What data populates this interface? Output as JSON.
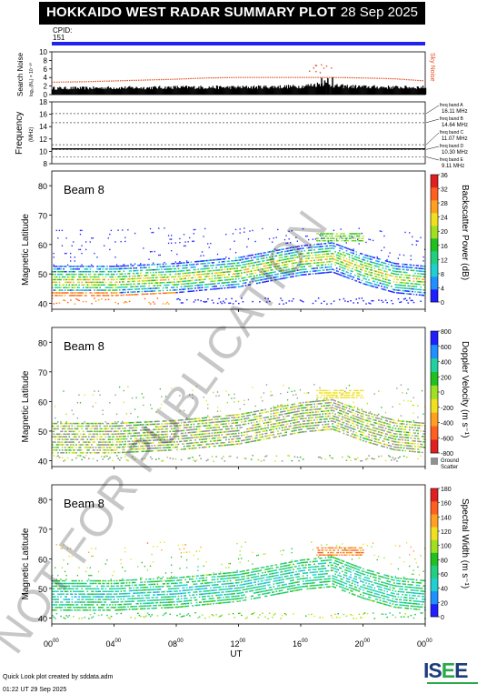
{
  "header": {
    "title": "HOKKAIDO WEST RADAR SUMMARY PLOT",
    "date": "28 Sep 2025",
    "cpid_label": "CPID:",
    "cpid_value": "151",
    "cpid_color": "#2222ee"
  },
  "noise_panel": {
    "ylabel": "Search Noise",
    "ylabel_sub": "log₁₀(N₀) × 10⁻³⁰",
    "right_label": "Sky Noise",
    "yticks": [
      "0",
      "2",
      "4",
      "6",
      "8",
      "10"
    ],
    "ylim": [
      0,
      10
    ],
    "bar_color": "#000000",
    "sky_color": "#e05020"
  },
  "freq_panel": {
    "ylabel": "Frequency",
    "ylabel_unit": "(MHz)",
    "yticks": [
      "8",
      "10",
      "12",
      "14",
      "16",
      "18"
    ],
    "ylim": [
      8,
      18
    ],
    "bands": [
      {
        "name": "freq band A",
        "value": "16.11 MHz"
      },
      {
        "name": "freq band B",
        "value": "14.64 MHz"
      },
      {
        "name": "freq band C",
        "value": "11.07 MHz"
      },
      {
        "name": "freq band D",
        "value": "10.30 MHz"
      },
      {
        "name": "freq band E",
        "value": "9.11 MHz"
      }
    ]
  },
  "panels": [
    {
      "beam": "Beam  8",
      "ylabel": "Magnetic Latitude",
      "yticks": [
        "40",
        "50",
        "60",
        "70",
        "80"
      ],
      "cbar_label": "Backscatter Power (dB)",
      "cbar_ticks": [
        "0",
        "4",
        "8",
        "12",
        "16",
        "20",
        "24",
        "28",
        "32",
        "36"
      ],
      "cbar_colors": [
        "#2020ff",
        "#2090ff",
        "#20d0d0",
        "#20d080",
        "#20c020",
        "#a0e020",
        "#f0e020",
        "#ffa020",
        "#ff6020",
        "#e02020"
      ]
    },
    {
      "beam": "Beam  8",
      "ylabel": "Magnetic Latitude",
      "yticks": [
        "40",
        "50",
        "60",
        "70",
        "80"
      ],
      "cbar_label": "Doppler Velocity (m s⁻¹)",
      "cbar_ticks": [
        "-800",
        "-600",
        "-400",
        "-200",
        "0",
        "200",
        "400",
        "600",
        "800"
      ],
      "cbar_colors": [
        "#e02020",
        "#ff6020",
        "#ffa020",
        "#f0e020",
        "#a0e020",
        "#20c020",
        "#20d0a0",
        "#2090ff",
        "#2020ff"
      ],
      "ground_label": "Ground",
      "ground_label2": "Scatter",
      "ground_color": "#909090"
    },
    {
      "beam": "Beam  8",
      "ylabel": "Magnetic Latitude",
      "yticks": [
        "40",
        "50",
        "60",
        "70",
        "80"
      ],
      "cbar_label": "Spectral Width (m s⁻¹)",
      "cbar_ticks": [
        "0",
        "20",
        "40",
        "60",
        "80",
        "100",
        "120",
        "140",
        "160",
        "180"
      ],
      "cbar_colors": [
        "#2020ff",
        "#2090ff",
        "#20d0d0",
        "#20d080",
        "#20c020",
        "#a0e020",
        "#f0e020",
        "#ffa020",
        "#ff6020",
        "#e02020"
      ]
    }
  ],
  "xaxis": {
    "label": "UT",
    "ticks": [
      {
        "h": "00",
        "m": "00"
      },
      {
        "h": "04",
        "m": "00"
      },
      {
        "h": "08",
        "m": "00"
      },
      {
        "h": "12",
        "m": "00"
      },
      {
        "h": "16",
        "m": "00"
      },
      {
        "h": "20",
        "m": "00"
      },
      {
        "h": "00",
        "m": "00"
      }
    ],
    "xlim_hours": [
      0,
      24
    ]
  },
  "watermark": "NOT FOR PUBLICATION",
  "footer": {
    "line1": "Quick Look plot created by sddata.adm",
    "line2": "01:22 UT 29 Sep 2025",
    "logo_a": "IS",
    "logo_b": "E",
    "logo_c": "E"
  },
  "chart_data": [
    {
      "type": "bar",
      "ylabel": "Search Noise",
      "ylim": [
        0,
        10
      ],
      "x_hours": [
        0,
        2,
        4,
        6,
        8,
        10,
        12,
        14,
        16,
        17.5,
        18,
        20,
        22,
        24
      ],
      "values": [
        1.5,
        1.5,
        1.6,
        1.6,
        1.7,
        1.7,
        1.7,
        1.8,
        1.9,
        2.6,
        2.0,
        1.8,
        1.7,
        1.7
      ],
      "sky_noise": [
        2.9,
        3.0,
        3.2,
        3.4,
        3.6,
        3.9,
        4.0,
        4.0,
        4.0,
        4.0,
        4.0,
        3.9,
        3.7,
        3.2
      ]
    },
    {
      "type": "line",
      "ylabel": "Frequency",
      "ylim": [
        8,
        18
      ],
      "series": [
        {
          "name": "freq",
          "values": [
            16.11,
            14.64,
            11.07,
            10.3,
            9.11
          ]
        }
      ]
    },
    {
      "type": "heatmap",
      "ylabel": "Magnetic Latitude",
      "ylim": [
        38,
        85
      ],
      "xlim_hours": [
        0,
        24
      ],
      "series": [
        {
          "name": "main band center",
          "x_hours": [
            0,
            4,
            8,
            12,
            16,
            18,
            20,
            22,
            24
          ],
          "values": [
            47,
            47,
            48,
            50,
            54,
            55,
            51,
            48,
            47
          ]
        },
        {
          "name": "upper scatter",
          "x_hours": [
            17,
            20
          ],
          "values": [
            63,
            63
          ]
        }
      ]
    }
  ]
}
